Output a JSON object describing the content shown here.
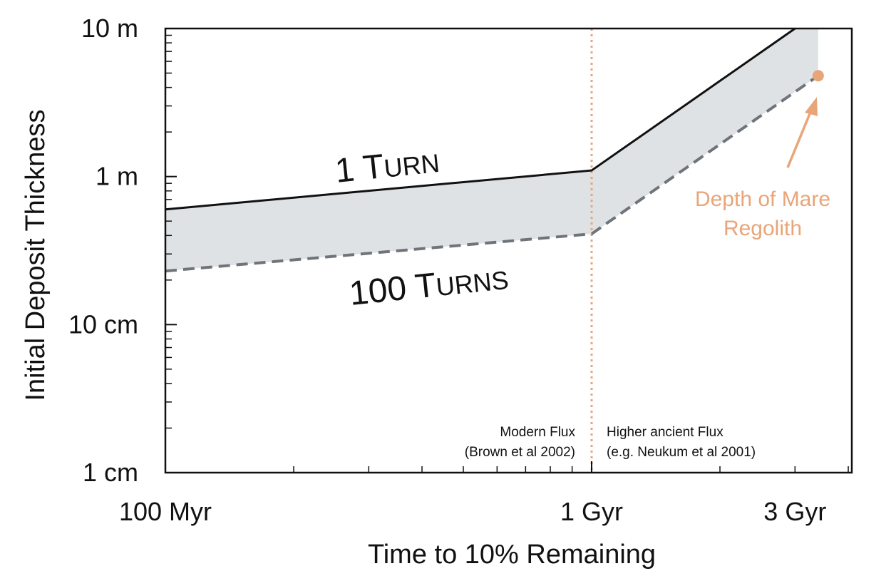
{
  "chart_data": {
    "type": "area",
    "title": "",
    "xlabel": "Time to 10% Remaining",
    "ylabel": "Initial Deposit Thickness",
    "x_scale": "log",
    "y_scale": "log",
    "xlim_myr": [
      100,
      4000
    ],
    "ylim_m": [
      0.01,
      10
    ],
    "x_ticks": [
      {
        "value": 100,
        "label": "100 Myr"
      },
      {
        "value": 1000,
        "label": "1 Gyr"
      },
      {
        "value": 3000,
        "label": "3 Gyr"
      }
    ],
    "y_ticks": [
      {
        "value": 0.01,
        "label": "1 cm"
      },
      {
        "value": 0.1,
        "label": "10 cm"
      },
      {
        "value": 1,
        "label": "1 m"
      },
      {
        "value": 10,
        "label": "10 m"
      }
    ],
    "grid": false,
    "series": [
      {
        "name": "1 Turn",
        "label_main": "1 T",
        "label_small": "URN",
        "style": "solid",
        "color": "#111111",
        "points": [
          [
            100,
            0.6
          ],
          [
            1000,
            1.1
          ],
          [
            3000,
            10
          ]
        ]
      },
      {
        "name": "100 Turns",
        "label_main": "100 T",
        "label_small": "URNS",
        "style": "dashed",
        "color": "#6e7479",
        "points": [
          [
            100,
            0.23
          ],
          [
            1000,
            0.41
          ],
          [
            3400,
            4.8
          ]
        ]
      }
    ],
    "band": {
      "color": "#dfe2e5",
      "upper": [
        [
          100,
          0.6
        ],
        [
          1000,
          1.1
        ],
        [
          3000,
          10
        ],
        [
          3400,
          10
        ]
      ],
      "lower": [
        [
          100,
          0.23
        ],
        [
          1000,
          0.41
        ],
        [
          3400,
          4.8
        ]
      ]
    },
    "divider": {
      "x": 1000,
      "color": "#e8a579"
    },
    "annotations": {
      "modern_flux": [
        "Modern Flux",
        "(Brown et al 2002)"
      ],
      "ancient_flux": [
        "Higher ancient Flux",
        "(e.g. Neukum et al 2001)"
      ],
      "mare_regolith": {
        "lines": [
          "Depth of Mare",
          "Regolith"
        ],
        "point": [
          3400,
          4.8
        ],
        "color": "#e8a579"
      }
    }
  }
}
